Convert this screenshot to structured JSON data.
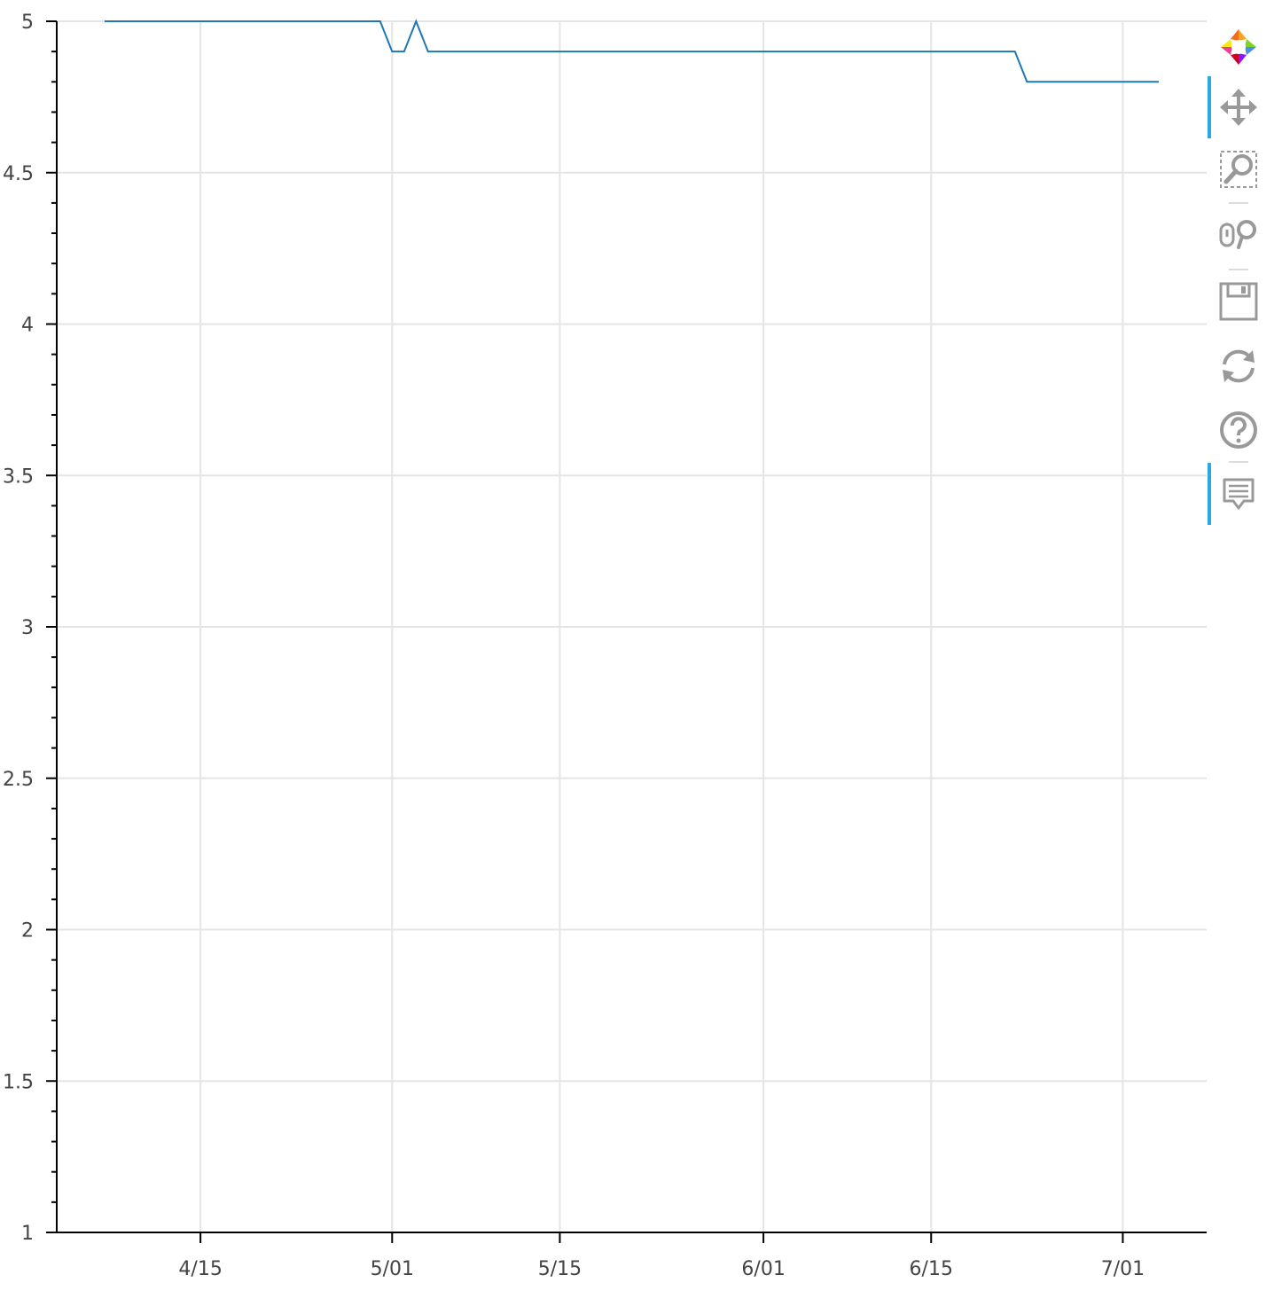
{
  "chart_data": {
    "type": "line",
    "title": "",
    "xlabel": "",
    "ylabel": "",
    "x_axis_type": "datetime",
    "x_tick_labels": [
      "4/15",
      "5/01",
      "5/15",
      "6/01",
      "6/15",
      "7/01"
    ],
    "x_tick_dates": [
      "2021-04-15",
      "2021-05-01",
      "2021-05-15",
      "2021-06-01",
      "2021-06-15",
      "2021-07-01"
    ],
    "xlim": [
      "2021-04-03",
      "2021-07-08"
    ],
    "y_tick_labels": [
      "1",
      "1.5",
      "2",
      "2.5",
      "3",
      "3.5",
      "4",
      "4.5",
      "5"
    ],
    "ylim": [
      1,
      5
    ],
    "grid": true,
    "series": [
      {
        "color": "#1f77b4",
        "x": [
          "2021-04-07",
          "2021-04-30",
          "2021-05-01",
          "2021-05-02",
          "2021-05-03",
          "2021-05-04",
          "2021-06-22",
          "2021-06-23",
          "2021-07-04"
        ],
        "y": [
          5.0,
          5.0,
          4.9,
          4.9,
          5.0,
          4.9,
          4.9,
          4.8,
          4.8
        ]
      }
    ]
  },
  "toolbar": {
    "tools": [
      {
        "name": "bokeh-logo-icon",
        "active": false
      },
      {
        "name": "pan-icon",
        "active": true
      },
      {
        "name": "box-zoom-icon",
        "active": false
      },
      {
        "name": "wheel-zoom-icon",
        "active": false
      },
      {
        "name": "save-icon",
        "active": false
      },
      {
        "name": "reset-icon",
        "active": false
      },
      {
        "name": "help-icon",
        "active": false
      },
      {
        "name": "hover-icon",
        "active": true
      }
    ],
    "accent_color": "#26aae1",
    "icon_color": "#999999"
  }
}
